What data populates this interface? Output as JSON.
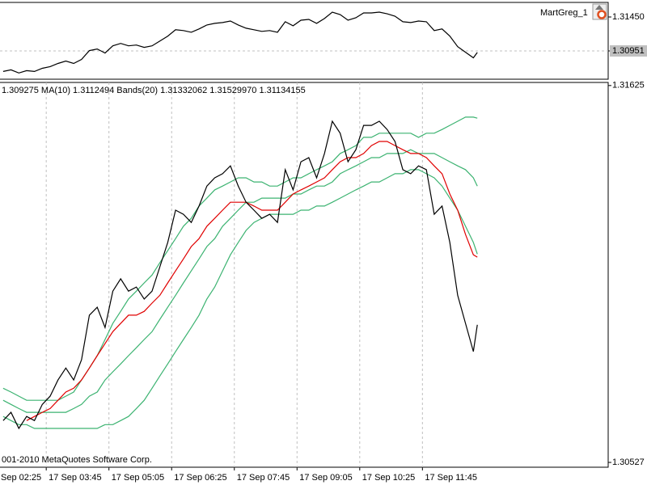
{
  "chart_data": [
    {
      "type": "line",
      "label": "MartGreg_1",
      "x": [
        170,
        180,
        190,
        200,
        210,
        220,
        230,
        240,
        250,
        260,
        270,
        280,
        290,
        300,
        310,
        320,
        330,
        340,
        350,
        360,
        370,
        380,
        390,
        400,
        410,
        420,
        430,
        440,
        450,
        460,
        470,
        480,
        490,
        500,
        510,
        520,
        530,
        540,
        550,
        560,
        570,
        580,
        590,
        600,
        610,
        620,
        630,
        640,
        650,
        660,
        670,
        680,
        690,
        700,
        710,
        720,
        730,
        740,
        750,
        760,
        770,
        775
      ],
      "series": [
        {
          "color": "#000000",
          "values": [
            1.30649,
            1.30673,
            1.30626,
            1.30661,
            1.30649,
            1.30696,
            1.3072,
            1.30767,
            1.30802,
            1.30767,
            1.30826,
            1.30956,
            1.30979,
            1.3092,
            1.31026,
            1.31062,
            1.31026,
            1.31038,
            1.31003,
            1.31026,
            1.31097,
            1.31168,
            1.31262,
            1.3125,
            1.31226,
            1.31274,
            1.31332,
            1.31356,
            1.31368,
            1.31391,
            1.31332,
            1.31285,
            1.31262,
            1.31238,
            1.3125,
            1.31226,
            1.3138,
            1.31321,
            1.31403,
            1.31415,
            1.31356,
            1.31427,
            1.31521,
            1.31486,
            1.31403,
            1.31438,
            1.31509,
            1.31509,
            1.31521,
            1.31497,
            1.31462,
            1.3138,
            1.31368,
            1.31391,
            1.3138,
            1.3125,
            1.31274,
            1.31168,
            1.31014,
            1.30932,
            1.3085,
            1.30928
          ]
        }
      ],
      "xlim": [
        166,
        942
      ],
      "ylim": [
        1.30535,
        1.31664
      ],
      "yticks": [
        {
          "value": 1.3145,
          "label": "1.31450"
        },
        1.30951
      ],
      "highlight_tick": 1
    },
    {
      "type": "line",
      "header": "1.309275 MA(10) 1.3112494 Bands(20) 1.31332062 1.31529970 1.31134155",
      "footer": "001-2010 MetaQuotes Software Corp.",
      "x": [
        170,
        180,
        190,
        200,
        210,
        220,
        230,
        240,
        250,
        260,
        270,
        280,
        290,
        300,
        310,
        320,
        330,
        340,
        350,
        360,
        370,
        380,
        390,
        400,
        410,
        420,
        430,
        440,
        450,
        460,
        470,
        480,
        490,
        500,
        510,
        520,
        530,
        540,
        550,
        560,
        570,
        580,
        590,
        600,
        610,
        620,
        630,
        640,
        650,
        660,
        670,
        680,
        690,
        700,
        710,
        720,
        730,
        740,
        750,
        760,
        770,
        775
      ],
      "series": [
        {
          "color": "#3cb371",
          "values": [
            1.30743,
            1.30732,
            1.3072,
            1.30708,
            1.30708,
            1.30708,
            1.30708,
            1.30708,
            1.3072,
            1.30732,
            1.30767,
            1.30802,
            1.30838,
            1.30885,
            1.30932,
            1.30967,
            1.31003,
            1.31026,
            1.3105,
            1.31073,
            1.31109,
            1.31144,
            1.31179,
            1.31215,
            1.31238,
            1.31274,
            1.31297,
            1.31321,
            1.31332,
            1.31344,
            1.31356,
            1.31356,
            1.31344,
            1.31344,
            1.31332,
            1.31332,
            1.31344,
            1.31356,
            1.31356,
            1.31368,
            1.3138,
            1.31391,
            1.31403,
            1.31427,
            1.31438,
            1.3145,
            1.31474,
            1.31474,
            1.31486,
            1.31486,
            1.31486,
            1.31486,
            1.31486,
            1.31474,
            1.31486,
            1.31486,
            1.31497,
            1.31509,
            1.31521,
            1.31533,
            1.31533,
            1.3153
          ]
        },
        {
          "color": "#3cb371",
          "values": [
            1.30708,
            1.30696,
            1.30684,
            1.30673,
            1.30673,
            1.30673,
            1.30673,
            1.30673,
            1.30673,
            1.30684,
            1.30696,
            1.3072,
            1.30732,
            1.30767,
            1.30791,
            1.30814,
            1.30838,
            1.30861,
            1.30885,
            1.30908,
            1.30944,
            1.30979,
            1.31014,
            1.3105,
            1.31085,
            1.3112,
            1.31156,
            1.31179,
            1.31215,
            1.31238,
            1.31262,
            1.31285,
            1.31285,
            1.31297,
            1.31297,
            1.31297,
            1.31297,
            1.31309,
            1.31309,
            1.31321,
            1.31332,
            1.31332,
            1.31344,
            1.31368,
            1.3138,
            1.31391,
            1.31403,
            1.31415,
            1.31415,
            1.31427,
            1.31427,
            1.31427,
            1.31438,
            1.31427,
            1.31427,
            1.31427,
            1.31415,
            1.31403,
            1.31391,
            1.3138,
            1.31356,
            1.31332
          ]
        },
        {
          "color": "#3cb371",
          "values": [
            1.30661,
            1.30649,
            1.30637,
            1.30637,
            1.30626,
            1.30626,
            1.30626,
            1.30626,
            1.30626,
            1.30626,
            1.30626,
            1.30626,
            1.30626,
            1.30637,
            1.30637,
            1.30649,
            1.30661,
            1.30684,
            1.30708,
            1.30743,
            1.30779,
            1.30814,
            1.3085,
            1.30885,
            1.3092,
            1.30956,
            1.31003,
            1.31038,
            1.31085,
            1.31132,
            1.31168,
            1.31203,
            1.31226,
            1.31238,
            1.3125,
            1.3125,
            1.3125,
            1.3125,
            1.31262,
            1.31262,
            1.31274,
            1.31274,
            1.31285,
            1.31297,
            1.31309,
            1.31321,
            1.31332,
            1.31344,
            1.31344,
            1.31356,
            1.31368,
            1.31368,
            1.3138,
            1.3138,
            1.31368,
            1.31356,
            1.31332,
            1.31297,
            1.31262,
            1.31215,
            1.31168,
            1.31134
          ]
        },
        {
          "color": "#e00000",
          "values": [
            null,
            null,
            null,
            1.30649,
            1.30661,
            1.30673,
            1.30684,
            1.30708,
            1.30732,
            1.30743,
            1.30767,
            1.30802,
            1.30838,
            1.30873,
            1.30908,
            1.30932,
            1.30956,
            1.30956,
            1.30967,
            1.30991,
            1.31014,
            1.3105,
            1.31085,
            1.3112,
            1.31156,
            1.31179,
            1.31215,
            1.31238,
            1.31262,
            1.31285,
            1.31285,
            1.31285,
            1.31274,
            1.31262,
            1.31262,
            1.31262,
            1.31285,
            1.31309,
            1.31321,
            1.31332,
            1.31344,
            1.31356,
            1.3138,
            1.31403,
            1.31415,
            1.31415,
            1.31427,
            1.3145,
            1.31462,
            1.31462,
            1.3145,
            1.31438,
            1.31427,
            1.31427,
            1.31415,
            1.31391,
            1.31368,
            1.31309,
            1.31262,
            1.31191,
            1.31132,
            1.31125
          ]
        },
        {
          "color": "#000000",
          "values": [
            1.30649,
            1.30673,
            1.30626,
            1.30661,
            1.30649,
            1.30696,
            1.3072,
            1.30767,
            1.30802,
            1.30767,
            1.30826,
            1.30956,
            1.30979,
            1.3092,
            1.31026,
            1.31062,
            1.31026,
            1.31038,
            1.31003,
            1.31026,
            1.31097,
            1.31168,
            1.31262,
            1.3125,
            1.31226,
            1.31274,
            1.31332,
            1.31356,
            1.31368,
            1.31391,
            1.31332,
            1.31285,
            1.31262,
            1.31238,
            1.3125,
            1.31226,
            1.3138,
            1.31321,
            1.31403,
            1.31415,
            1.31356,
            1.31427,
            1.31521,
            1.31486,
            1.31403,
            1.31438,
            1.31509,
            1.31509,
            1.31521,
            1.31497,
            1.31462,
            1.3138,
            1.31368,
            1.31391,
            1.3138,
            1.3125,
            1.31274,
            1.31168,
            1.31014,
            1.30932,
            1.3085,
            1.30928
          ]
        }
      ],
      "xlim": [
        166,
        942
      ],
      "ylim": [
        1.30513,
        1.31634
      ],
      "yticks": [
        1.31625,
        1.30527
      ],
      "xticks": [
        {
          "value": 145,
          "label": "Sep 02:25"
        },
        {
          "value": 225,
          "label": "17 Sep 03:45"
        },
        {
          "value": 305,
          "label": "17 Sep 05:05"
        },
        {
          "value": 385,
          "label": "17 Sep 06:25"
        },
        {
          "value": 465,
          "label": "17 Sep 07:45"
        },
        {
          "value": 545,
          "label": "17 Sep 09:05"
        },
        {
          "value": 625,
          "label": "17 Sep 10:25"
        },
        {
          "value": 705,
          "label": "17 Sep 11:45"
        }
      ],
      "grid": true
    }
  ]
}
